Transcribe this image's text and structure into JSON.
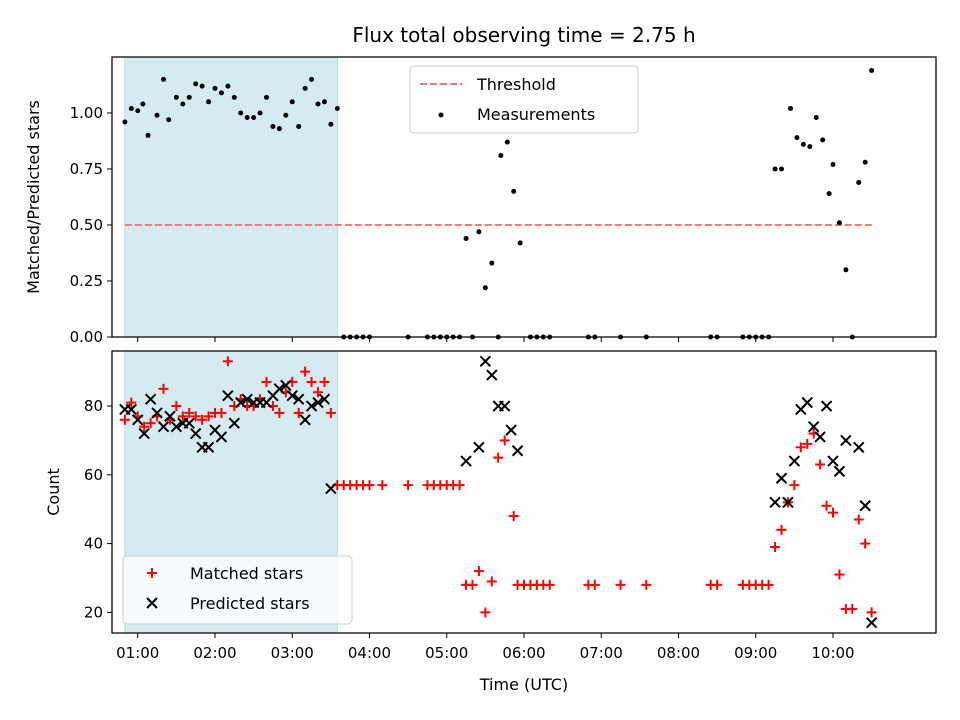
{
  "chart_data": [
    {
      "type": "scatter",
      "title": "Flux total observing time = 2.75 h",
      "xlabel": "",
      "ylabel": "Matched/Predicted stars",
      "xlim": [
        "00:40",
        "11:20"
      ],
      "ylim": [
        0,
        1.25
      ],
      "yticks": [
        "0.00",
        "0.25",
        "0.50",
        "0.75",
        "1.00"
      ],
      "grid": false,
      "legend_position": "top-center",
      "shaded_region": {
        "x_start": "00:50",
        "x_end": "03:35",
        "color": "#d5ebf2"
      },
      "threshold": {
        "name": "Threshold",
        "y": 0.5,
        "x_start": "00:50",
        "x_end": "10:32",
        "color": "#f07b7b",
        "style": "dashed"
      },
      "series": [
        {
          "name": "Measurements",
          "marker": "dot",
          "color": "#000000",
          "points": [
            [
              "00:50",
              0.96
            ],
            [
              "00:55",
              1.02
            ],
            [
              "01:00",
              1.01
            ],
            [
              "01:04",
              1.04
            ],
            [
              "01:08",
              0.9
            ],
            [
              "01:15",
              0.99
            ],
            [
              "01:20",
              1.15
            ],
            [
              "01:24",
              0.97
            ],
            [
              "01:30",
              1.07
            ],
            [
              "01:35",
              1.04
            ],
            [
              "01:40",
              1.07
            ],
            [
              "01:45",
              1.13
            ],
            [
              "01:50",
              1.12
            ],
            [
              "01:55",
              1.05
            ],
            [
              "02:00",
              1.11
            ],
            [
              "02:05",
              1.09
            ],
            [
              "02:10",
              1.12
            ],
            [
              "02:15",
              1.07
            ],
            [
              "02:20",
              1.0
            ],
            [
              "02:25",
              0.98
            ],
            [
              "02:30",
              0.98
            ],
            [
              "02:35",
              1.0
            ],
            [
              "02:40",
              1.07
            ],
            [
              "02:45",
              0.94
            ],
            [
              "02:50",
              0.93
            ],
            [
              "02:55",
              0.99
            ],
            [
              "03:00",
              1.05
            ],
            [
              "03:05",
              0.94
            ],
            [
              "03:10",
              1.11
            ],
            [
              "03:15",
              1.15
            ],
            [
              "03:20",
              1.04
            ],
            [
              "03:25",
              1.05
            ],
            [
              "03:30",
              0.95
            ],
            [
              "03:35",
              1.02
            ],
            [
              "03:40",
              0.0
            ],
            [
              "03:45",
              0.0
            ],
            [
              "03:50",
              0.0
            ],
            [
              "03:55",
              0.0
            ],
            [
              "04:00",
              0.0
            ],
            [
              "04:30",
              0.0
            ],
            [
              "04:45",
              0.0
            ],
            [
              "04:50",
              0.0
            ],
            [
              "04:55",
              0.0
            ],
            [
              "05:00",
              0.0
            ],
            [
              "05:05",
              0.0
            ],
            [
              "05:10",
              0.0
            ],
            [
              "05:15",
              0.44
            ],
            [
              "05:20",
              0.0
            ],
            [
              "05:25",
              0.47
            ],
            [
              "05:30",
              0.22
            ],
            [
              "05:35",
              0.33
            ],
            [
              "05:40",
              0.0
            ],
            [
              "05:42",
              0.81
            ],
            [
              "05:47",
              0.87
            ],
            [
              "05:52",
              0.65
            ],
            [
              "05:57",
              0.42
            ],
            [
              "06:05",
              0.0
            ],
            [
              "06:10",
              0.0
            ],
            [
              "06:15",
              0.0
            ],
            [
              "06:20",
              0.0
            ],
            [
              "06:50",
              0.0
            ],
            [
              "06:55",
              0.0
            ],
            [
              "07:15",
              0.0
            ],
            [
              "07:35",
              0.0
            ],
            [
              "08:25",
              0.0
            ],
            [
              "08:30",
              0.0
            ],
            [
              "08:50",
              0.0
            ],
            [
              "08:55",
              0.0
            ],
            [
              "09:00",
              0.0
            ],
            [
              "09:05",
              0.0
            ],
            [
              "09:10",
              0.0
            ],
            [
              "09:15",
              0.75
            ],
            [
              "09:20",
              0.75
            ],
            [
              "09:27",
              1.02
            ],
            [
              "09:32",
              0.89
            ],
            [
              "09:37",
              0.86
            ],
            [
              "09:42",
              0.85
            ],
            [
              "09:47",
              0.98
            ],
            [
              "09:52",
              0.88
            ],
            [
              "09:57",
              0.64
            ],
            [
              "10:00",
              0.77
            ],
            [
              "10:05",
              0.51
            ],
            [
              "10:10",
              0.3
            ],
            [
              "10:15",
              0.0
            ],
            [
              "10:20",
              0.69
            ],
            [
              "10:25",
              0.78
            ],
            [
              "10:30",
              1.19
            ]
          ]
        }
      ]
    },
    {
      "type": "scatter",
      "title": "",
      "xlabel": "Time (UTC)",
      "ylabel": "Count",
      "xlim": [
        "00:40",
        "11:20"
      ],
      "ylim": [
        14,
        96
      ],
      "xticks": [
        "01:00",
        "02:00",
        "03:00",
        "04:00",
        "05:00",
        "06:00",
        "07:00",
        "08:00",
        "09:00",
        "10:00"
      ],
      "yticks": [
        "20",
        "40",
        "60",
        "80"
      ],
      "grid": false,
      "legend_position": "bottom-left",
      "shaded_region": {
        "x_start": "00:50",
        "x_end": "03:35",
        "color": "#d5ebf2"
      },
      "series": [
        {
          "name": "Matched stars",
          "marker": "plus",
          "color": "#ff0000",
          "points": [
            [
              "00:50",
              76
            ],
            [
              "00:55",
              81
            ],
            [
              "01:00",
              77
            ],
            [
              "01:05",
              74
            ],
            [
              "01:10",
              75
            ],
            [
              "01:15",
              77
            ],
            [
              "01:20",
              85
            ],
            [
              "01:25",
              76
            ],
            [
              "01:30",
              80
            ],
            [
              "01:35",
              77
            ],
            [
              "01:40",
              78
            ],
            [
              "01:45",
              77
            ],
            [
              "01:50",
              76
            ],
            [
              "01:55",
              77
            ],
            [
              "02:00",
              78
            ],
            [
              "02:05",
              78
            ],
            [
              "02:10",
              93
            ],
            [
              "02:15",
              80
            ],
            [
              "02:20",
              82
            ],
            [
              "02:25",
              80
            ],
            [
              "02:30",
              80
            ],
            [
              "02:35",
              82
            ],
            [
              "02:40",
              87
            ],
            [
              "02:45",
              80
            ],
            [
              "02:50",
              78
            ],
            [
              "02:55",
              84
            ],
            [
              "03:00",
              87
            ],
            [
              "03:05",
              78
            ],
            [
              "03:10",
              90
            ],
            [
              "03:15",
              87
            ],
            [
              "03:20",
              84
            ],
            [
              "03:25",
              87
            ],
            [
              "03:30",
              78
            ],
            [
              "03:35",
              57
            ],
            [
              "03:40",
              57
            ],
            [
              "03:45",
              57
            ],
            [
              "03:50",
              57
            ],
            [
              "03:55",
              57
            ],
            [
              "04:00",
              57
            ],
            [
              "04:10",
              57
            ],
            [
              "04:30",
              57
            ],
            [
              "04:45",
              57
            ],
            [
              "04:50",
              57
            ],
            [
              "04:55",
              57
            ],
            [
              "05:00",
              57
            ],
            [
              "05:05",
              57
            ],
            [
              "05:10",
              57
            ],
            [
              "05:15",
              28
            ],
            [
              "05:20",
              28
            ],
            [
              "05:25",
              32
            ],
            [
              "05:30",
              20
            ],
            [
              "05:35",
              29
            ],
            [
              "05:40",
              65
            ],
            [
              "05:45",
              70
            ],
            [
              "05:52",
              48
            ],
            [
              "05:55",
              28
            ],
            [
              "06:00",
              28
            ],
            [
              "06:05",
              28
            ],
            [
              "06:10",
              28
            ],
            [
              "06:15",
              28
            ],
            [
              "06:20",
              28
            ],
            [
              "06:50",
              28
            ],
            [
              "06:55",
              28
            ],
            [
              "07:15",
              28
            ],
            [
              "07:35",
              28
            ],
            [
              "08:25",
              28
            ],
            [
              "08:30",
              28
            ],
            [
              "08:50",
              28
            ],
            [
              "08:55",
              28
            ],
            [
              "09:00",
              28
            ],
            [
              "09:05",
              28
            ],
            [
              "09:10",
              28
            ],
            [
              "09:15",
              39
            ],
            [
              "09:20",
              44
            ],
            [
              "09:25",
              52
            ],
            [
              "09:30",
              57
            ],
            [
              "09:35",
              68
            ],
            [
              "09:40",
              69
            ],
            [
              "09:45",
              72
            ],
            [
              "09:50",
              63
            ],
            [
              "09:55",
              51
            ],
            [
              "10:00",
              49
            ],
            [
              "10:05",
              31
            ],
            [
              "10:10",
              21
            ],
            [
              "10:15",
              21
            ],
            [
              "10:20",
              47
            ],
            [
              "10:25",
              40
            ],
            [
              "10:30",
              20
            ]
          ]
        },
        {
          "name": "Predicted stars",
          "marker": "x",
          "color": "#000000",
          "points": [
            [
              "00:50",
              79
            ],
            [
              "00:55",
              79
            ],
            [
              "01:00",
              76
            ],
            [
              "01:05",
              72
            ],
            [
              "01:10",
              82
            ],
            [
              "01:15",
              78
            ],
            [
              "01:20",
              74
            ],
            [
              "01:25",
              77
            ],
            [
              "01:30",
              74
            ],
            [
              "01:35",
              75
            ],
            [
              "01:40",
              75
            ],
            [
              "01:45",
              72
            ],
            [
              "01:50",
              68
            ],
            [
              "01:55",
              68
            ],
            [
              "02:00",
              73
            ],
            [
              "02:05",
              71
            ],
            [
              "02:10",
              83
            ],
            [
              "02:15",
              75
            ],
            [
              "02:20",
              81
            ],
            [
              "02:25",
              82
            ],
            [
              "02:30",
              81
            ],
            [
              "02:35",
              81
            ],
            [
              "02:40",
              81
            ],
            [
              "02:45",
              83
            ],
            [
              "02:50",
              85
            ],
            [
              "02:55",
              86
            ],
            [
              "03:00",
              83
            ],
            [
              "03:05",
              82
            ],
            [
              "03:10",
              76
            ],
            [
              "03:15",
              80
            ],
            [
              "03:20",
              81
            ],
            [
              "03:25",
              82
            ],
            [
              "03:30",
              56
            ],
            [
              "05:15",
              64
            ],
            [
              "05:25",
              68
            ],
            [
              "05:30",
              93
            ],
            [
              "05:35",
              89
            ],
            [
              "05:40",
              80
            ],
            [
              "05:45",
              80
            ],
            [
              "05:50",
              73
            ],
            [
              "05:55",
              67
            ],
            [
              "09:15",
              52
            ],
            [
              "09:20",
              59
            ],
            [
              "09:25",
              52
            ],
            [
              "09:30",
              64
            ],
            [
              "09:35",
              79
            ],
            [
              "09:40",
              81
            ],
            [
              "09:45",
              74
            ],
            [
              "09:50",
              71
            ],
            [
              "09:55",
              80
            ],
            [
              "10:00",
              64
            ],
            [
              "10:05",
              61
            ],
            [
              "10:10",
              70
            ],
            [
              "10:20",
              68
            ],
            [
              "10:25",
              51
            ],
            [
              "10:30",
              17
            ]
          ]
        }
      ]
    }
  ]
}
